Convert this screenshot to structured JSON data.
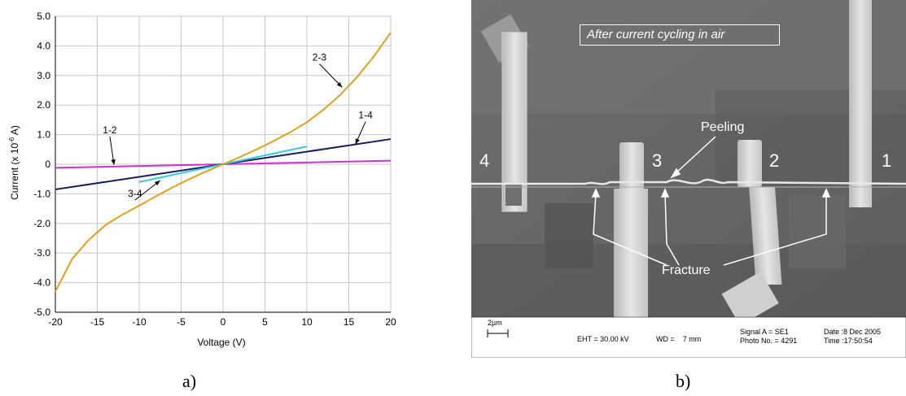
{
  "figure": {
    "caption_a": "a)",
    "caption_b": "b)"
  },
  "chart_data": {
    "type": "line",
    "xlabel": "Voltage (V)",
    "ylabel": "Current (x 10",
    "ylabel_sup": "-6",
    "ylabel_end": " A)",
    "xlim": [
      -20,
      20
    ],
    "ylim": [
      -5,
      5
    ],
    "x_ticks": [
      -20,
      -15,
      -10,
      -5,
      0,
      5,
      10,
      15,
      20
    ],
    "x_tick_labels": [
      "-20",
      "-15",
      "-10",
      "-5",
      "0",
      "5",
      "10",
      "15",
      "20"
    ],
    "y_ticks": [
      -5,
      -4,
      -3,
      -2,
      -1,
      0,
      1,
      2,
      3,
      4,
      5
    ],
    "y_tick_labels": [
      "-5.0",
      "-4.0",
      "-3.0",
      "-2.0",
      "-1.0",
      "0",
      "1.0",
      "2.0",
      "3.0",
      "4.0",
      "5.0"
    ],
    "grid": true,
    "series": [
      {
        "name": "1-2",
        "color": "#cc33cc",
        "x": [
          -20,
          20
        ],
        "y": [
          -0.12,
          0.12
        ]
      },
      {
        "name": "1-4",
        "color": "#1a1a66",
        "x": [
          -20,
          20
        ],
        "y": [
          -0.85,
          0.85
        ]
      },
      {
        "name": "3-4",
        "color": "#33ccdd",
        "x": [
          -10,
          10
        ],
        "y": [
          -0.6,
          0.6
        ]
      },
      {
        "name": "2-3",
        "color": "#e0a020",
        "x": [
          -20,
          -18,
          -16,
          -14,
          -12,
          -10,
          -8,
          -6,
          -4,
          -2,
          0,
          2,
          4,
          6,
          8,
          10,
          12,
          14,
          16,
          18,
          20
        ],
        "y": [
          -4.3,
          -3.2,
          -2.55,
          -2.05,
          -1.7,
          -1.4,
          -1.08,
          -0.78,
          -0.5,
          -0.24,
          0,
          0.24,
          0.5,
          0.78,
          1.08,
          1.42,
          1.85,
          2.35,
          2.95,
          3.65,
          4.45
        ]
      }
    ],
    "annotations": [
      {
        "text": "1-2",
        "tx": -13.5,
        "ty": 1.05,
        "ax": -13.0,
        "ay": -0.02
      },
      {
        "text": "1-4",
        "tx": 17.0,
        "ty": 1.55,
        "ax": 15.8,
        "ay": 0.68
      },
      {
        "text": "3-4",
        "tx": -10.5,
        "ty": -1.1,
        "ax": -7.5,
        "ay": -0.55
      },
      {
        "text": "2-3",
        "tx": 11.5,
        "ty": 3.5,
        "ax": 14.2,
        "ay": 2.6
      }
    ]
  },
  "micrograph": {
    "title": "After current cycling in air",
    "labels": [
      "1",
      "2",
      "3",
      "4"
    ],
    "peeling": "Peeling",
    "fracture": "Fracture",
    "scale_bar": "2µm",
    "eht": "EHT = 30.00 kV",
    "wd": "WD =    7 mm",
    "signal": "Signal A = SE1",
    "photo": "Photo No. = 4291",
    "date": "Date :8 Dec 2005",
    "time": "Time :17:50:54"
  }
}
